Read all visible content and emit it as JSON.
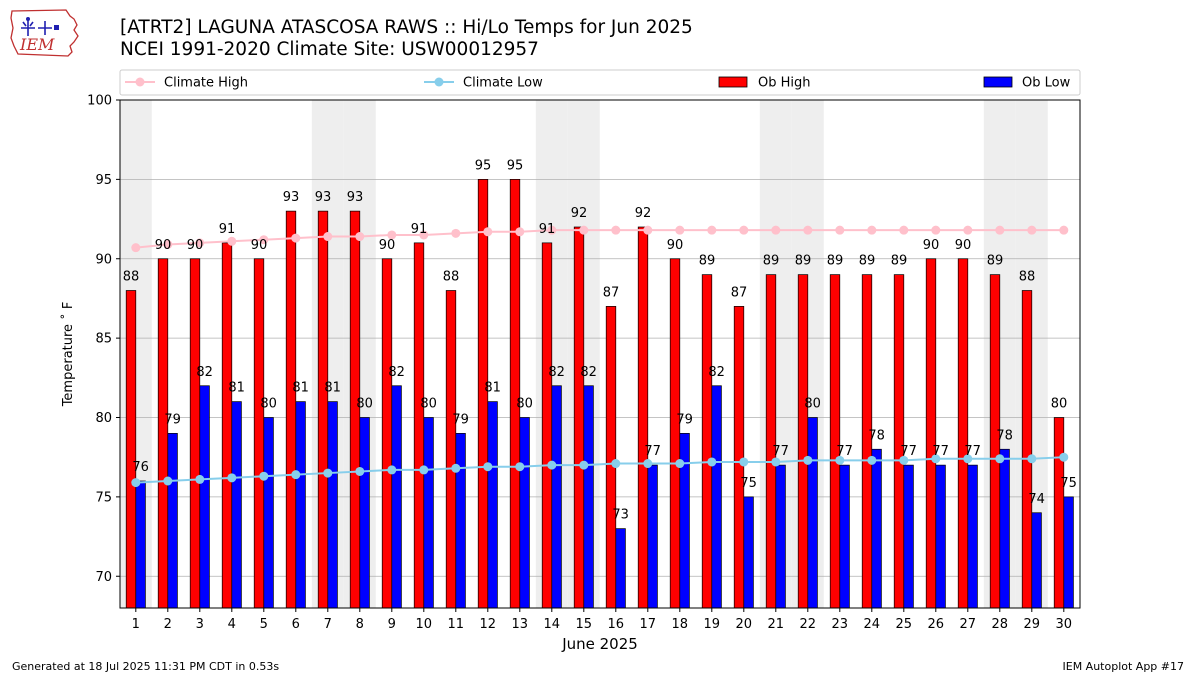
{
  "title_line1": "[ATRT2] LAGUNA ATASCOSA RAWS :: Hi/Lo Temps for Jun 2025",
  "title_line2": "NCEI 1991-2020 Climate Site: USW00012957",
  "logo_text": "IEM",
  "footer_left": "Generated at 18 Jul 2025 11:31 PM CDT in 0.53s",
  "footer_right": "IEM Autoplot App #17",
  "colors": {
    "ob_high": "#ff0000",
    "ob_low": "#0000ff",
    "climate_high": "#ffc0cb",
    "climate_low": "#87ceeb",
    "weekend_band": "#eeeeee"
  },
  "chart_data": {
    "type": "bar",
    "title": "[ATRT2] LAGUNA ATASCOSA RAWS :: Hi/Lo Temps for Jun 2025",
    "subtitle": "NCEI 1991-2020 Climate Site: USW00012957",
    "xlabel": "June 2025",
    "ylabel": "Temperature ˚ F",
    "ylim": [
      68,
      100
    ],
    "yticks": [
      70,
      75,
      80,
      85,
      90,
      95,
      100
    ],
    "grid": "horizontal",
    "legend": "top",
    "categories": [
      "1",
      "2",
      "3",
      "4",
      "5",
      "6",
      "7",
      "8",
      "9",
      "10",
      "11",
      "12",
      "13",
      "14",
      "15",
      "16",
      "17",
      "18",
      "19",
      "20",
      "21",
      "22",
      "23",
      "24",
      "25",
      "26",
      "27",
      "28",
      "29",
      "30"
    ],
    "weekend_days": [
      1,
      7,
      8,
      14,
      15,
      21,
      22,
      28,
      29
    ],
    "series": [
      {
        "name": "Ob High",
        "kind": "bar",
        "values": [
          88,
          90,
          90,
          91,
          90,
          93,
          93,
          93,
          90,
          91,
          88,
          95,
          95,
          91,
          92,
          87,
          92,
          90,
          89,
          87,
          89,
          89,
          89,
          89,
          89,
          90,
          90,
          89,
          88,
          80
        ]
      },
      {
        "name": "Ob Low",
        "kind": "bar",
        "values": [
          76,
          79,
          82,
          81,
          80,
          81,
          81,
          80,
          82,
          80,
          79,
          81,
          80,
          82,
          82,
          73,
          77,
          79,
          82,
          75,
          77,
          80,
          77,
          78,
          77,
          77,
          77,
          78,
          74,
          75
        ]
      },
      {
        "name": "Climate High",
        "kind": "line",
        "values": [
          90.7,
          90.9,
          91.0,
          91.1,
          91.2,
          91.3,
          91.4,
          91.4,
          91.5,
          91.5,
          91.6,
          91.7,
          91.7,
          91.8,
          91.8,
          91.8,
          91.8,
          91.8,
          91.8,
          91.8,
          91.8,
          91.8,
          91.8,
          91.8,
          91.8,
          91.8,
          91.8,
          91.8,
          91.8,
          91.8
        ]
      },
      {
        "name": "Climate Low",
        "kind": "line",
        "values": [
          75.9,
          76.0,
          76.1,
          76.2,
          76.3,
          76.4,
          76.5,
          76.6,
          76.7,
          76.7,
          76.8,
          76.9,
          76.9,
          77.0,
          77.0,
          77.1,
          77.1,
          77.1,
          77.2,
          77.2,
          77.2,
          77.3,
          77.3,
          77.3,
          77.3,
          77.4,
          77.4,
          77.4,
          77.4,
          77.5
        ]
      }
    ]
  }
}
